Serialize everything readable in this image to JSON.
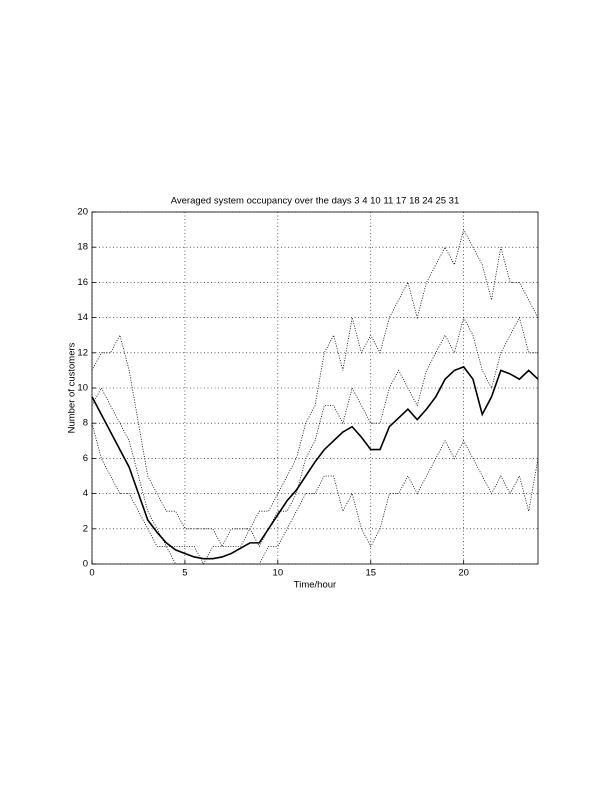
{
  "chart_data": {
    "type": "line",
    "title": "Averaged system occupancy over the days 3  4 10 11  17 18 24 25 31",
    "xlabel": "Time/hour",
    "ylabel": "Number of customers",
    "x": [
      0,
      0.5,
      1,
      1.5,
      2,
      2.5,
      3,
      3.5,
      4,
      4.5,
      5,
      5.5,
      6,
      6.5,
      7,
      7.5,
      8,
      8.5,
      9,
      9.5,
      10,
      10.5,
      11,
      11.5,
      12,
      12.5,
      13,
      13.5,
      14,
      14.5,
      15,
      15.5,
      16,
      16.5,
      17,
      17.5,
      18,
      18.5,
      19,
      19.5,
      20,
      20.5,
      21,
      21.5,
      22,
      22.5,
      23,
      23.5,
      24
    ],
    "series": [
      {
        "color": "#000000",
        "style": "dotted",
        "values": [
          11,
          12,
          12,
          13,
          11,
          8,
          5,
          4,
          3,
          3,
          2,
          2,
          2,
          2,
          1,
          2,
          2,
          2,
          3,
          3,
          4,
          5,
          6,
          8,
          9,
          12,
          13,
          11,
          14,
          12,
          13,
          12,
          14,
          15,
          16,
          14,
          16,
          17,
          18,
          17,
          19,
          18,
          17,
          15,
          18,
          16,
          16,
          15,
          14
        ]
      },
      {
        "color": "#000000",
        "style": "dotted",
        "values": [
          8,
          6,
          5,
          4,
          4,
          3,
          2,
          1,
          1,
          0,
          0,
          0,
          0,
          0,
          0,
          0,
          0,
          0,
          0,
          1,
          1,
          2,
          3,
          4,
          4,
          5,
          5,
          3,
          4,
          2,
          1,
          2,
          4,
          4,
          5,
          4,
          5,
          6,
          7,
          6,
          7,
          6,
          5,
          4,
          5,
          4,
          5,
          3,
          6
        ]
      },
      {
        "color": "#000000",
        "style": "dotted",
        "values": [
          9,
          10,
          9,
          8,
          7,
          5,
          3,
          2,
          1,
          1,
          1,
          1,
          0,
          1,
          1,
          1,
          1,
          2,
          1,
          2,
          3,
          3,
          4,
          6,
          7,
          9,
          9,
          8,
          10,
          9,
          8,
          8,
          10,
          11,
          10,
          9,
          11,
          12,
          13,
          12,
          14,
          13,
          11,
          10,
          12,
          13,
          14,
          12,
          12
        ]
      },
      {
        "color": "#000000",
        "style": "solid",
        "values": [
          9.5,
          8.5,
          7.5,
          6.5,
          5.5,
          4,
          2.5,
          1.8,
          1.2,
          0.8,
          0.6,
          0.4,
          0.3,
          0.3,
          0.4,
          0.6,
          0.9,
          1.2,
          1.2,
          2,
          2.8,
          3.6,
          4.2,
          5,
          5.8,
          6.5,
          7,
          7.5,
          7.8,
          7.2,
          6.5,
          6.5,
          7.8,
          8.3,
          8.8,
          8.2,
          8.8,
          9.5,
          10.5,
          11,
          11.2,
          10.5,
          8.5,
          9.5,
          11,
          10.8,
          10.5,
          11,
          10.5
        ]
      }
    ],
    "xlim": [
      0,
      24
    ],
    "ylim": [
      0,
      20
    ],
    "xticks": [
      0,
      5,
      10,
      15,
      20
    ],
    "yticks": [
      0,
      2,
      4,
      6,
      8,
      10,
      12,
      14,
      16,
      18,
      20
    ],
    "grid": true
  }
}
